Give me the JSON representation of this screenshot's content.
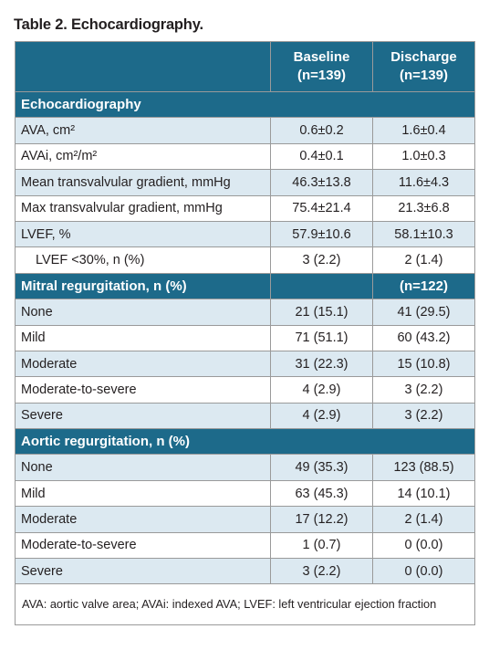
{
  "title": "Table 2. Echocardiography.",
  "header": {
    "baseline_label": "Baseline",
    "baseline_n": "(n=139)",
    "discharge_label": "Discharge",
    "discharge_n": "(n=139)"
  },
  "sections": [
    {
      "title": "Echocardiography",
      "right_label": "",
      "rows": [
        {
          "label": "AVA, cm²",
          "baseline": "0.6±0.2",
          "discharge": "1.6±0.4"
        },
        {
          "label": "AVAi, cm²/m²",
          "baseline": "0.4±0.1",
          "discharge": "1.0±0.3"
        },
        {
          "label": "Mean transvalvular gradient, mmHg",
          "baseline": "46.3±13.8",
          "discharge": "11.6±4.3"
        },
        {
          "label": "Max transvalvular gradient, mmHg",
          "baseline": "75.4±21.4",
          "discharge": "21.3±6.8"
        },
        {
          "label": "LVEF, %",
          "baseline": "57.9±10.6",
          "discharge": "58.1±10.3"
        },
        {
          "label": "LVEF <30%, n (%)",
          "baseline": "3 (2.2)",
          "discharge": "2 (1.4)",
          "indent": true
        }
      ]
    },
    {
      "title": "Mitral regurgitation, n (%)",
      "right_label": "(n=122)",
      "rows": [
        {
          "label": "None",
          "baseline": "21 (15.1)",
          "discharge": "41 (29.5)"
        },
        {
          "label": "Mild",
          "baseline": "71 (51.1)",
          "discharge": "60 (43.2)"
        },
        {
          "label": "Moderate",
          "baseline": "31 (22.3)",
          "discharge": "15 (10.8)"
        },
        {
          "label": "Moderate-to-severe",
          "baseline": "4 (2.9)",
          "discharge": "3 (2.2)"
        },
        {
          "label": "Severe",
          "baseline": "4 (2.9)",
          "discharge": "3 (2.2)"
        }
      ]
    },
    {
      "title": "Aortic regurgitation, n (%)",
      "right_label": "",
      "rows": [
        {
          "label": "None",
          "baseline": "49 (35.3)",
          "discharge": "123 (88.5)"
        },
        {
          "label": "Mild",
          "baseline": "63 (45.3)",
          "discharge": "14 (10.1)"
        },
        {
          "label": "Moderate",
          "baseline": "17 (12.2)",
          "discharge": "2 (1.4)"
        },
        {
          "label": "Moderate-to-severe",
          "baseline": "1 (0.7)",
          "discharge": "0 (0.0)"
        },
        {
          "label": "Severe",
          "baseline": "3 (2.2)",
          "discharge": "0 (0.0)"
        }
      ]
    }
  ],
  "footnote": "AVA: aortic valve area; AVAi: indexed AVA; LVEF: left ventricular ejection fraction",
  "colors": {
    "header": "#1d6a8a",
    "band": "#dce9f1"
  }
}
